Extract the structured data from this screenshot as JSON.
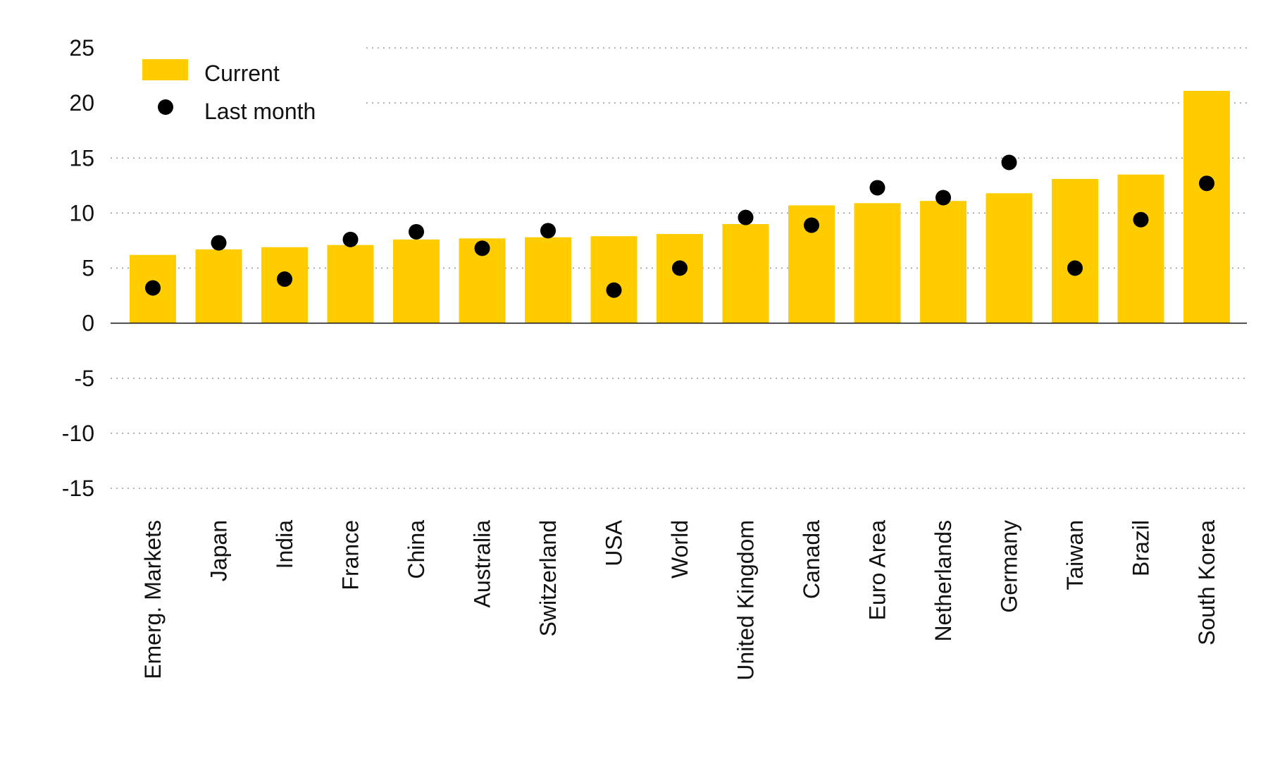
{
  "chart_data": {
    "type": "bar",
    "title": "",
    "xlabel": "",
    "ylabel": "",
    "ylim": [
      -15,
      25
    ],
    "yticks": [
      25,
      20,
      15,
      10,
      5,
      0,
      -5,
      -10,
      -15
    ],
    "grid": true,
    "legend_position": "top-left",
    "categories": [
      "Emerg. Markets",
      "Japan",
      "India",
      "France",
      "China",
      "Australia",
      "Switzerland",
      "USA",
      "World",
      "United Kingdom",
      "Canada",
      "Euro Area",
      "Netherlands",
      "Germany",
      "Taiwan",
      "Brazil",
      "South Korea"
    ],
    "series": [
      {
        "name": "Current",
        "kind": "bar",
        "color": "#FFCC00",
        "values": [
          6.2,
          6.7,
          6.9,
          7.1,
          7.6,
          7.7,
          7.8,
          7.9,
          8.1,
          9.0,
          10.7,
          10.9,
          11.1,
          11.8,
          13.1,
          13.5,
          21.1
        ]
      },
      {
        "name": "Last month",
        "kind": "dot",
        "color": "#000000",
        "values": [
          3.2,
          7.3,
          4.0,
          7.6,
          8.3,
          6.8,
          8.4,
          3.0,
          5.0,
          9.6,
          8.9,
          12.3,
          11.4,
          14.6,
          5.0,
          9.4,
          12.7
        ]
      }
    ]
  },
  "legend": {
    "current_label": "Current",
    "last_month_label": "Last month"
  }
}
